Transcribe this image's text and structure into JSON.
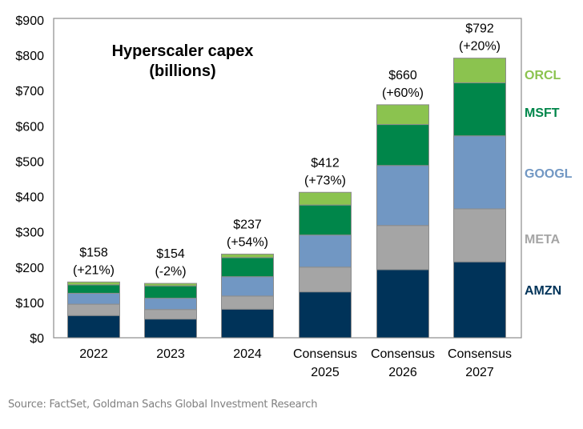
{
  "chart_data": {
    "type": "bar",
    "stacked": true,
    "title": "Hyperscaler capex",
    "subtitle": "(billions)",
    "xlabel": "",
    "ylabel": "",
    "ylim": [
      0,
      900
    ],
    "yticks": [
      "$0",
      "$100",
      "$200",
      "$300",
      "$400",
      "$500",
      "$600",
      "$700",
      "$800",
      "$900"
    ],
    "categories": [
      [
        "2022"
      ],
      [
        "2023"
      ],
      [
        "2024"
      ],
      [
        "Consensus",
        "2025"
      ],
      [
        "Consensus",
        "2026"
      ],
      [
        "Consensus",
        "2027"
      ]
    ],
    "totals": [
      "$158",
      "$154",
      "$237",
      "$412",
      "$660",
      "$792"
    ],
    "growth": [
      "(+21%)",
      "(-2%)",
      "(+54%)",
      "(+73%)",
      "(+60%)",
      "(+20%)"
    ],
    "series": [
      {
        "name": "AMZN",
        "color": "#003359",
        "values": [
          63,
          53,
          81,
          130,
          193,
          215
        ]
      },
      {
        "name": "META",
        "color": "#a5a5a5",
        "values": [
          32,
          27,
          37,
          70,
          125,
          150
        ]
      },
      {
        "name": "GOOGL",
        "color": "#7197c3",
        "values": [
          31,
          32,
          55,
          91,
          170,
          207
        ]
      },
      {
        "name": "MSFT",
        "color": "#00864a",
        "values": [
          24,
          35,
          54,
          85,
          116,
          150
        ]
      },
      {
        "name": "ORCL",
        "color": "#8bc34f",
        "values": [
          8,
          7,
          10,
          36,
          56,
          70
        ]
      }
    ],
    "legend_placement": "right",
    "grid": false
  },
  "source": "Source: FactSet, Goldman Sachs Global Investment Research"
}
